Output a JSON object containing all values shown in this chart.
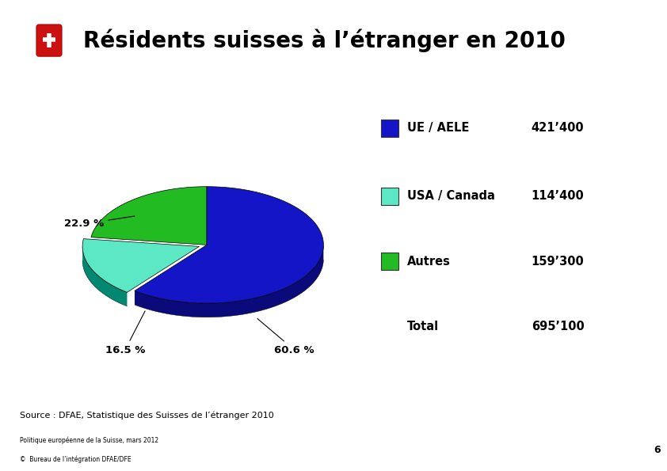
{
  "title": "Résidents suisses à l’étranger en 2010",
  "slices": [
    60.6,
    16.5,
    22.9
  ],
  "labels": [
    "UE / AELE",
    "USA / Canada",
    "Autres"
  ],
  "values_str": [
    "421’400",
    "114’400",
    "159’300"
  ],
  "total_label": "Total",
  "total_value": "695’100",
  "colors_top": [
    "#1515c8",
    "#5de8c5",
    "#22bb22"
  ],
  "colors_side": [
    "#0a0a7a",
    "#008870",
    "#115511"
  ],
  "pct_labels": [
    "60.6 %",
    "16.5 %",
    "22.9 %"
  ],
  "source_text": "Source : DFAE, Statistique des Suisses de l’étranger 2010",
  "footer_line1": "Politique européenne de la Suisse, mars 2012",
  "footer_line2": "©  Bureau de l’intégration DFAE/DFE",
  "page_number": "6",
  "background_color": "#ffffff",
  "explode": [
    0.0,
    0.07,
    0.0
  ],
  "start_angle": 90,
  "yscale": 0.5,
  "depth": 0.12
}
